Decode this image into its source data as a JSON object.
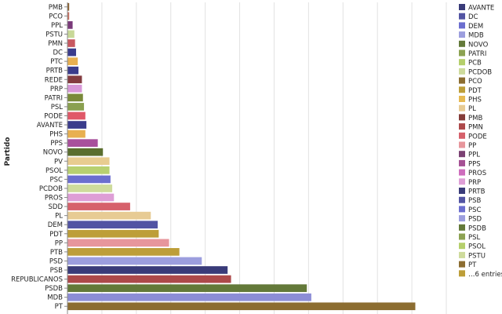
{
  "chart_data": {
    "type": "bar",
    "orientation": "horizontal",
    "ylabel": "Partido",
    "xlim": [
      0,
      110
    ],
    "grid": true,
    "categories": [
      "PMB",
      "PCO",
      "PPL",
      "PSTU",
      "PMN",
      "DC",
      "PTC",
      "PRTB",
      "REDE",
      "PRP",
      "PATRI",
      "PSL",
      "PODE",
      "AVANTE",
      "PHS",
      "PPS",
      "NOVO",
      "PV",
      "PSOL",
      "PSC",
      "PCDOB",
      "PROS",
      "SDD",
      "PL",
      "DEM",
      "PDT",
      "PP",
      "PTB",
      "PSD",
      "PSB",
      "REPUBLICANOS",
      "PSDB",
      "MDB",
      "PT"
    ],
    "values": [
      0.5,
      0.5,
      1.5,
      2,
      2.2,
      2.5,
      3,
      3.2,
      4.2,
      4.2,
      4.5,
      4.8,
      5.2,
      5.5,
      5.2,
      8.8,
      10.3,
      12.2,
      12.2,
      12.5,
      13,
      13.5,
      18.2,
      24.2,
      26.2,
      26.5,
      29.5,
      32.5,
      39,
      46.5,
      47.5,
      69.5,
      70.8,
      101
    ],
    "colors": [
      "#8a6030",
      "#c87060",
      "#7a3a7a",
      "#c8d898",
      "#c85860",
      "#3a3c8c",
      "#e8b050",
      "#3a3c8c",
      "#843c40",
      "#d898d8",
      "#7a8a3a",
      "#8aa050",
      "#e05868",
      "#3a3c8c",
      "#e8b050",
      "#a8509c",
      "#5a6e2e",
      "#e8cc90",
      "#b8d070",
      "#6b6ecf",
      "#cedb9c",
      "#de9ed6",
      "#d6616b",
      "#e7cb94",
      "#5254a3",
      "#bd9e39",
      "#e7969c",
      "#bd9e39",
      "#9c9ede",
      "#393b79",
      "#ad494a",
      "#637939",
      "#8c8dd6",
      "#8c6d31"
    ],
    "legend": {
      "placement": "right",
      "entries": [
        {
          "label": "AVANTE",
          "color": "#393b79"
        },
        {
          "label": "DC",
          "color": "#5254a3"
        },
        {
          "label": "DEM",
          "color": "#6b6ecf"
        },
        {
          "label": "MDB",
          "color": "#9c9ede"
        },
        {
          "label": "NOVO",
          "color": "#637939"
        },
        {
          "label": "PATRI",
          "color": "#8ca252"
        },
        {
          "label": "PCB",
          "color": "#b5cf6b"
        },
        {
          "label": "PCDOB",
          "color": "#cedb9c"
        },
        {
          "label": "PCO",
          "color": "#8c6d31"
        },
        {
          "label": "PDT",
          "color": "#bd9e39"
        },
        {
          "label": "PHS",
          "color": "#e7ba52"
        },
        {
          "label": "PL",
          "color": "#e7cb94"
        },
        {
          "label": "PMB",
          "color": "#843c39"
        },
        {
          "label": "PMN",
          "color": "#ad494a"
        },
        {
          "label": "PODE",
          "color": "#d6616b"
        },
        {
          "label": "PP",
          "color": "#e7969c"
        },
        {
          "label": "PPL",
          "color": "#7b4173"
        },
        {
          "label": "PPS",
          "color": "#a55194"
        },
        {
          "label": "PROS",
          "color": "#ce6dbd"
        },
        {
          "label": "PRP",
          "color": "#de9ed6"
        },
        {
          "label": "PRTB",
          "color": "#393b79"
        },
        {
          "label": "PSB",
          "color": "#5254a3"
        },
        {
          "label": "PSC",
          "color": "#6b6ecf"
        },
        {
          "label": "PSD",
          "color": "#9c9ede"
        },
        {
          "label": "PSDB",
          "color": "#637939"
        },
        {
          "label": "PSL",
          "color": "#8ca252"
        },
        {
          "label": "PSOL",
          "color": "#b5cf6b"
        },
        {
          "label": "PSTU",
          "color": "#cedb9c"
        },
        {
          "label": "PT",
          "color": "#8c6d31"
        },
        {
          "label": "…6 entries",
          "color": "#bd9e39"
        }
      ]
    }
  }
}
